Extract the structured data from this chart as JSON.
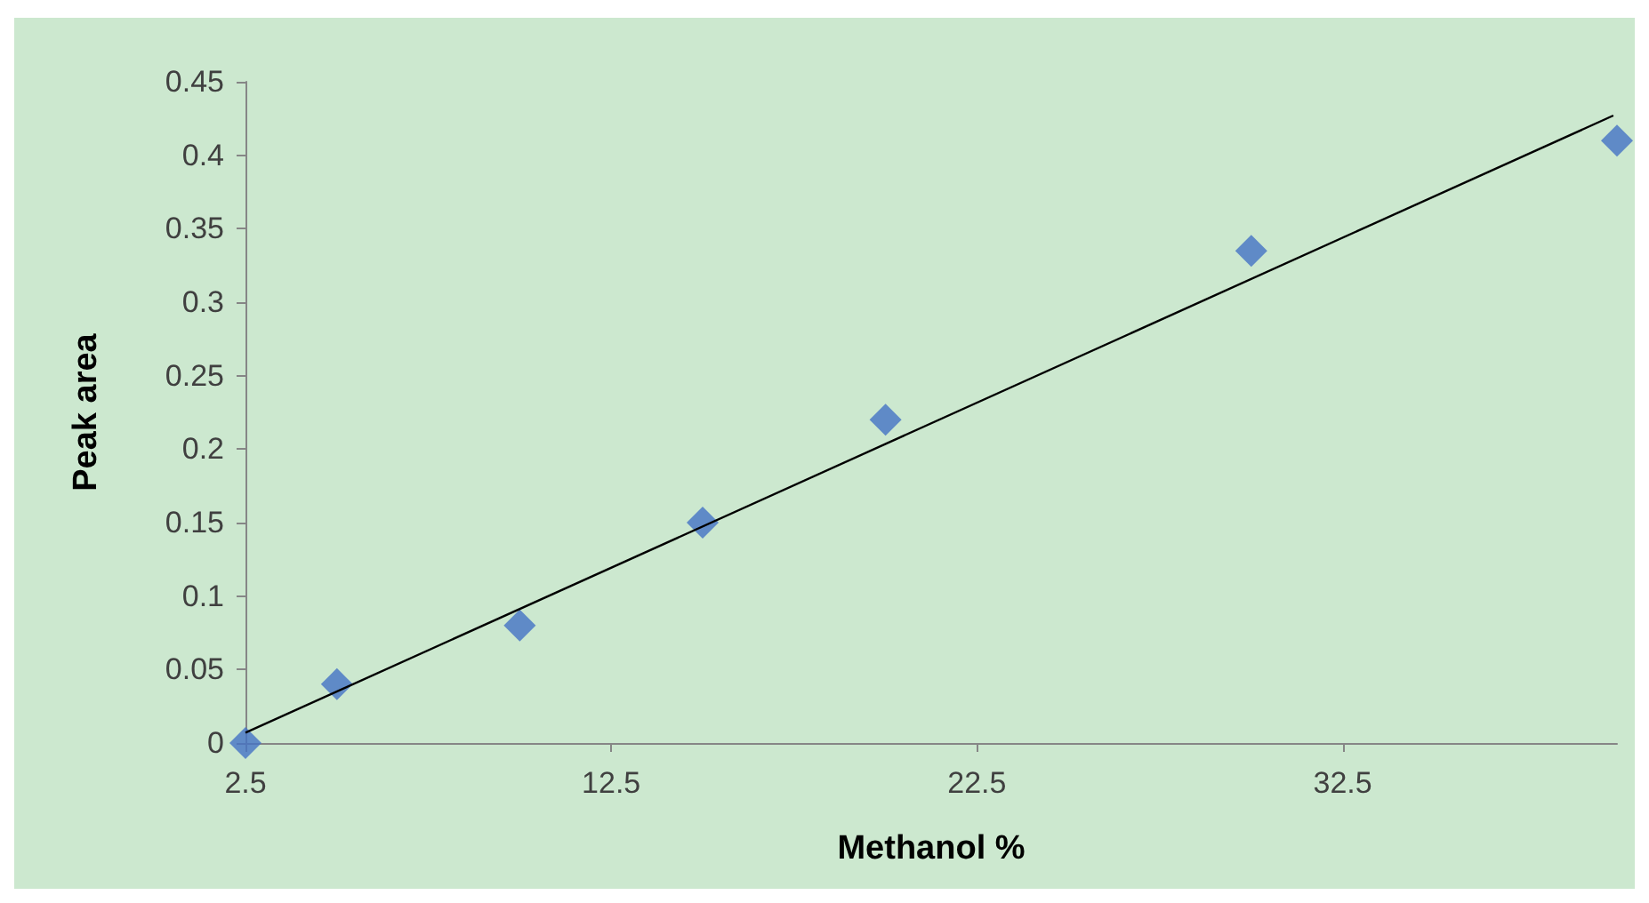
{
  "chart_data": {
    "type": "scatter",
    "xlabel": "Methanol %",
    "ylabel": "Peak area",
    "xlim": [
      2.5,
      40
    ],
    "xticks": [
      2.5,
      12.5,
      22.5,
      32.5
    ],
    "ylim": [
      0,
      0.45
    ],
    "yticks": [
      0,
      0.05,
      0.1,
      0.15,
      0.2,
      0.25,
      0.3,
      0.35,
      0.4,
      0.45
    ],
    "grid": false,
    "marker": "diamond",
    "series": [
      {
        "color": "#4472c4",
        "x": [
          2.5,
          5,
          10,
          15,
          20,
          30,
          40
        ],
        "values": [
          0,
          0.04,
          0.08,
          0.15,
          0.22,
          0.335,
          0.41
        ]
      },
      {
        "type": "line",
        "color": "#000000",
        "x": [
          2.5,
          39.9
        ],
        "values": [
          0.007,
          0.427
        ],
        "marker": "none"
      }
    ]
  }
}
